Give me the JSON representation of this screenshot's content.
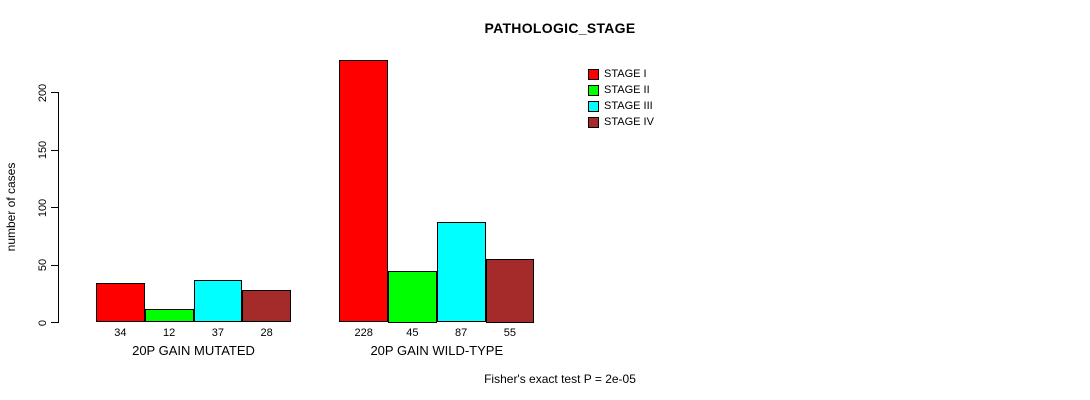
{
  "title": "PATHOLOGIC_STAGE",
  "y_axis": {
    "label": "number of cases",
    "ticks": [
      0,
      50,
      100,
      150,
      200
    ]
  },
  "legend": {
    "items": [
      {
        "label": "STAGE I",
        "color": "#FF0000"
      },
      {
        "label": "STAGE II",
        "color": "#00FF00"
      },
      {
        "label": "STAGE III",
        "color": "#00FFFF"
      },
      {
        "label": "STAGE IV",
        "color": "#A52A2A"
      }
    ]
  },
  "footnote": "Fisher's exact test P = 2e-05",
  "chart_data": {
    "type": "bar",
    "title": "PATHOLOGIC_STAGE",
    "xlabel": "",
    "ylabel": "number of cases",
    "categories": [
      "20P GAIN MUTATED",
      "20P GAIN WILD-TYPE"
    ],
    "series": [
      {
        "name": "STAGE I",
        "color": "#FF0000",
        "values": [
          34,
          228
        ]
      },
      {
        "name": "STAGE II",
        "color": "#00FF00",
        "values": [
          12,
          45
        ]
      },
      {
        "name": "STAGE III",
        "color": "#00FFFF",
        "values": [
          37,
          87
        ]
      },
      {
        "name": "STAGE IV",
        "color": "#A52A2A",
        "values": [
          28,
          55
        ]
      }
    ],
    "yticks": [
      0,
      50,
      100,
      150,
      200
    ],
    "ylim": [
      0,
      230
    ],
    "grid": false,
    "bar_value_labels": true,
    "bar_border_color": "#000000",
    "legend_position": "top-right",
    "annotation": "Fisher's exact test P = 2e-05",
    "background_color": "#FFFFFF"
  }
}
